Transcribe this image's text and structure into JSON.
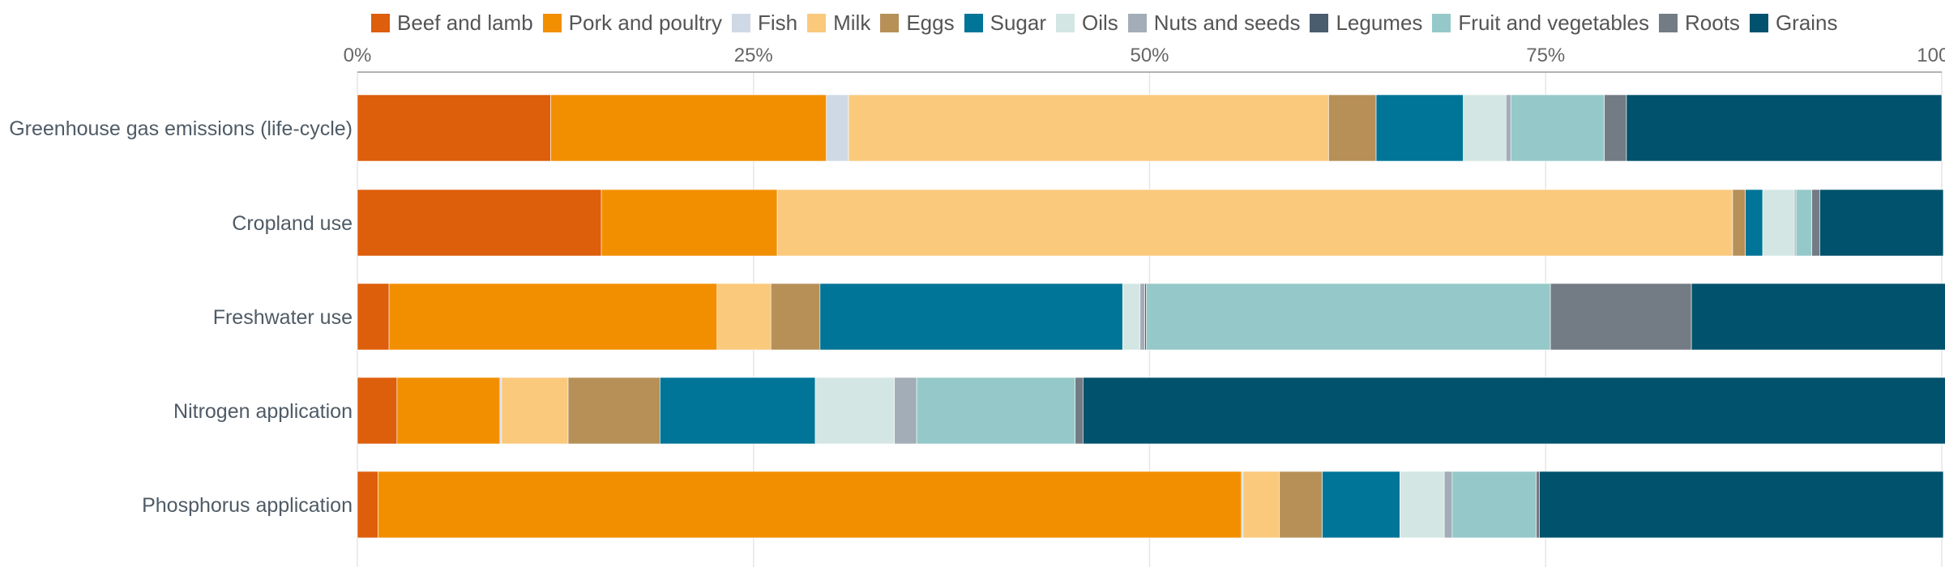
{
  "chart_data": {
    "type": "bar",
    "orientation": "horizontal",
    "stacked": true,
    "normalized": true,
    "title": "",
    "xlabel": "",
    "ylabel": "",
    "xlim": [
      0,
      100
    ],
    "x_ticks": [
      0,
      25,
      50,
      75,
      100
    ],
    "x_tick_labels": [
      "0%",
      "25%",
      "50%",
      "75%",
      "100%"
    ],
    "x_axis_position": "top",
    "grid": true,
    "legend_position": "top",
    "categories": [
      "Greenhouse gas emissions (life-cycle)",
      "Cropland use",
      "Freshwater use",
      "Nitrogen application",
      "Phosphorus application"
    ],
    "series": [
      {
        "name": "Beef and lamb",
        "color": "#dd5e0b",
        "values": [
          12.2,
          15.4,
          2.0,
          2.5,
          1.3
        ]
      },
      {
        "name": "Pork and poultry",
        "color": "#f28f00",
        "values": [
          17.4,
          11.1,
          20.7,
          6.5,
          54.5
        ]
      },
      {
        "name": "Fish",
        "color": "#cfd9e6",
        "values": [
          1.4,
          0.0,
          0.0,
          0.1,
          0.1
        ]
      },
      {
        "name": "Milk",
        "color": "#fac97c",
        "values": [
          30.3,
          60.3,
          3.4,
          4.2,
          2.3
        ]
      },
      {
        "name": "Eggs",
        "color": "#b79058",
        "values": [
          3.0,
          0.8,
          3.1,
          5.8,
          2.7
        ]
      },
      {
        "name": "Sugar",
        "color": "#007597",
        "values": [
          5.5,
          1.1,
          19.1,
          9.8,
          4.9
        ]
      },
      {
        "name": "Oils",
        "color": "#d3e6e3",
        "values": [
          2.7,
          2.0,
          1.1,
          5.0,
          2.8
        ]
      },
      {
        "name": "Nuts and seeds",
        "color": "#a2adb7",
        "values": [
          0.3,
          0.1,
          0.3,
          1.4,
          0.5
        ]
      },
      {
        "name": "Legumes",
        "color": "#4a5d6e",
        "values": [
          0.0,
          0.0,
          0.1,
          0.0,
          0.0
        ]
      },
      {
        "name": "Fruit and vegetables",
        "color": "#95c9c9",
        "values": [
          5.9,
          1.0,
          25.5,
          10.0,
          5.3
        ]
      },
      {
        "name": "Roots",
        "color": "#737b84",
        "values": [
          1.4,
          0.5,
          8.9,
          0.5,
          0.2
        ]
      },
      {
        "name": "Grains",
        "color": "#00526d",
        "values": [
          19.9,
          7.8,
          16.1,
          54.6,
          25.5
        ]
      }
    ]
  }
}
